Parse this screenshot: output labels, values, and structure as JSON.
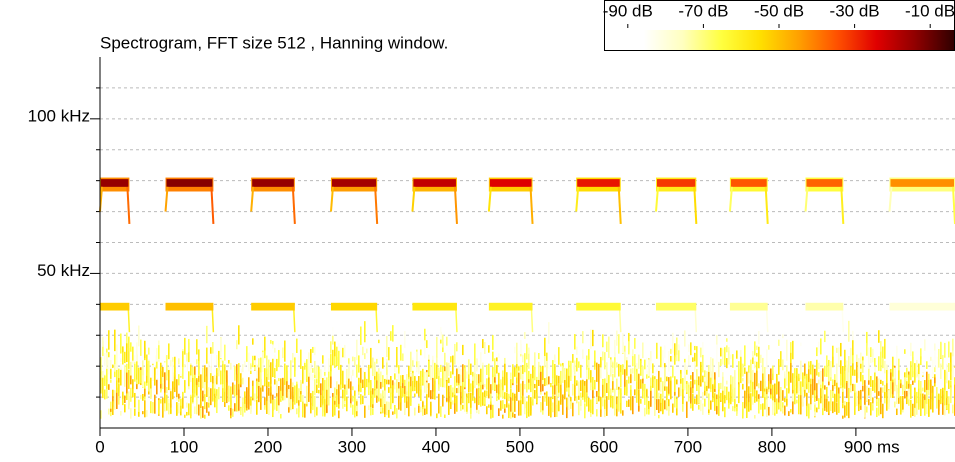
{
  "chart_data": {
    "type": "spectrogram",
    "title": "Spectrogram, FFT size 512 , Hanning window.",
    "xlim": [
      0,
      1018
    ],
    "xticks": [
      0,
      100,
      200,
      300,
      400,
      500,
      600,
      700,
      800,
      {
        "value": 900,
        "label": "900 ms"
      }
    ],
    "ylim": [
      0,
      120
    ],
    "yticks": [
      {
        "value": 50,
        "label": "50 kHz"
      },
      {
        "value": 100,
        "label": "100 kHz"
      }
    ],
    "yminor_ticks": [
      10,
      20,
      30,
      40,
      60,
      70,
      80,
      90,
      110
    ],
    "grid": true,
    "colorbar": {
      "clim": [
        -100,
        0
      ],
      "ticks": [
        {
          "value": -90,
          "label": "-90 dB"
        },
        {
          "value": -70,
          "label": "-70 dB"
        },
        {
          "value": -50,
          "label": "-50 dB"
        },
        {
          "value": -30,
          "label": "-30 dB"
        },
        {
          "value": -10,
          "label": "-10 dB"
        }
      ],
      "colormap": [
        "#ffffff",
        "#ffffff",
        "#ffffc0",
        "#ffff40",
        "#ffe000",
        "#ffa000",
        "#ff5000",
        "#e00000",
        "#900000",
        "#300000"
      ]
    },
    "harmonic_khz": 80,
    "fundamental_khz": 40,
    "sweep_end_khz": 66,
    "noise_band_khz": [
      3,
      30
    ],
    "calls": {
      "start": [
        0,
        78,
        180,
        275,
        372,
        463,
        567,
        662,
        750,
        840,
        940
      ],
      "end": [
        35,
        135,
        232,
        330,
        425,
        515,
        620,
        710,
        795,
        885,
        1018
      ],
      "peak_db": [
        -12,
        -10,
        -12,
        -14,
        -18,
        -22,
        -25,
        -30,
        -34,
        -36,
        -42
      ]
    }
  }
}
